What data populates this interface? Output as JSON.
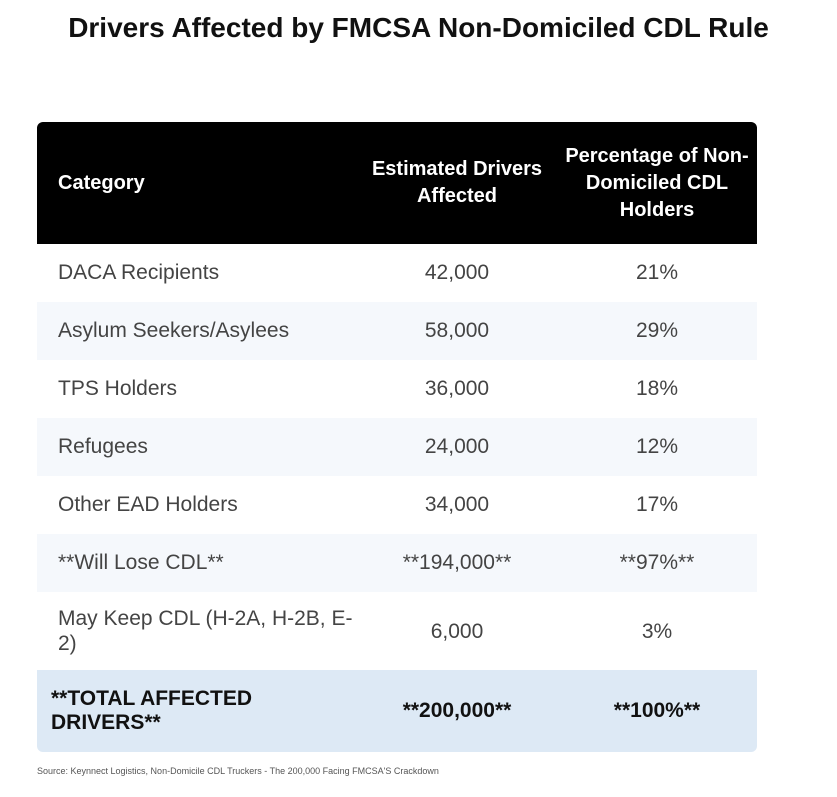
{
  "title": "Drivers Affected by FMCSA Non-Domiciled CDL Rule",
  "table": {
    "headers": [
      "Category",
      "Estimated Drivers Affected",
      "Percentage of Non-Domiciled CDL Holders"
    ],
    "rows": [
      [
        "DACA Recipients",
        "42,000",
        "21%"
      ],
      [
        "Asylum Seekers/Asylees",
        "58,000",
        "29%"
      ],
      [
        "TPS Holders",
        "36,000",
        "18%"
      ],
      [
        "Refugees",
        "24,000",
        "12%"
      ],
      [
        "Other EAD Holders",
        "34,000",
        "17%"
      ],
      [
        "**Will Lose CDL**",
        "**194,000**",
        "**97%**"
      ],
      [
        "May Keep CDL (H-2A, H-2B, E-2)",
        "6,000",
        "3%"
      ]
    ],
    "total": [
      "**TOTAL AFFECTED DRIVERS**",
      "**200,000**",
      "**100%**"
    ]
  },
  "source": "Source: Keynnect Logistics, Non-Domicile CDL Truckers - The 200,000 Facing FMCSA'S Crackdown"
}
